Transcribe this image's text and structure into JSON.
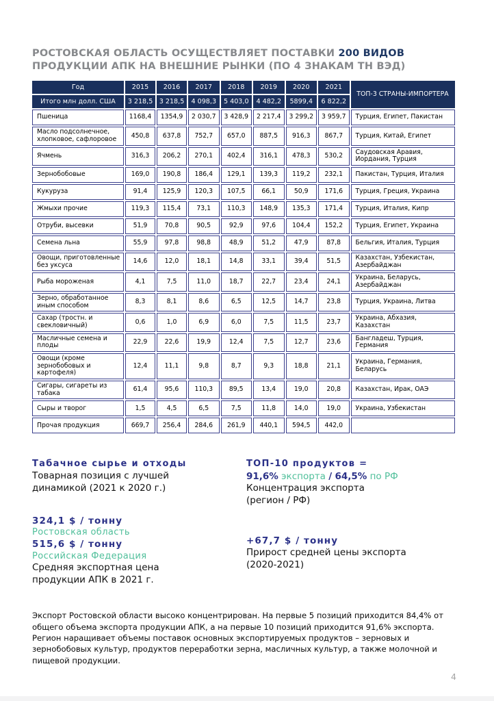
{
  "colors": {
    "header_navy": "#1a305d",
    "table_border": "#3a3f8c",
    "title_gray": "#87898c",
    "accent_navy": "#1f3864",
    "stat_indigo": "#2b3188",
    "stat_green": "#4fbf9a"
  },
  "title": {
    "line1_gray": "РОСТОВСКАЯ ОБЛАСТЬ ОСУЩЕСТВЛЯЕТ ПОСТАВКИ ",
    "line1_accent": "200 ВИДОВ",
    "line2": "ПРОДУКЦИИ АПК НА ВНЕШНИЕ РЫНКИ (ПО 4 ЗНАКАМ ТН ВЭД)"
  },
  "table": {
    "header": {
      "year_label": "Год",
      "years": [
        "2015",
        "2016",
        "2017",
        "2018",
        "2019",
        "2020",
        "2021"
      ],
      "total_label": "Итого млн долл. США",
      "totals": [
        "3 218,5",
        "3 218,5",
        "4 098,3",
        "5 403,0",
        "4 482,2",
        "5899,4",
        "6 822,2"
      ],
      "top3_label": "ТОП-3  СТРАНЫ-ИМПОРТЕРА"
    },
    "rows": [
      {
        "name": "Пшеница",
        "values": [
          "1168,4",
          "1354,9",
          "2 030,7",
          "3 428,9",
          "2 217,4",
          "3 299,2",
          "3 959,7"
        ],
        "top3": "Турция, Египет, Пакистан"
      },
      {
        "name": "Масло подсолнечное, хлопковое, сафлоровое",
        "values": [
          "450,8",
          "637,8",
          "752,7",
          "657,0",
          "887,5",
          "916,3",
          "867,7"
        ],
        "top3": "Турция, Китай, Египет"
      },
      {
        "name": "Ячмень",
        "values": [
          "316,3",
          "206,2",
          "270,1",
          "402,4",
          "316,1",
          "478,3",
          "530,2"
        ],
        "top3": "Саудовская Аравия, Иордания, Турция"
      },
      {
        "name": "Зернобобовые",
        "values": [
          "169,0",
          "190,8",
          "186,4",
          "129,1",
          "139,3",
          "119,2",
          "232,1"
        ],
        "top3": "Пакистан, Турция, Италия"
      },
      {
        "name": "Кукуруза",
        "values": [
          "91,4",
          "125,9",
          "120,3",
          "107,5",
          "66,1",
          "50,9",
          "171,6"
        ],
        "top3": "Турция, Греция, Украина"
      },
      {
        "name": "Жмыхи прочие",
        "values": [
          "119,3",
          "115,4",
          "73,1",
          "110,3",
          "148,9",
          "135,3",
          "171,4"
        ],
        "top3": "Турция, Италия, Кипр"
      },
      {
        "name": "Отруби, высевки",
        "values": [
          "51,9",
          "70,8",
          "90,5",
          "92,9",
          "97,6",
          "104,4",
          "152,2"
        ],
        "top3": "Турция, Египет, Украина"
      },
      {
        "name": "Семена льна",
        "values": [
          "55,9",
          "97,8",
          "98,8",
          "48,9",
          "51,2",
          "47,9",
          "87,8"
        ],
        "top3": "Бельгия, Италия, Турция"
      },
      {
        "name": "Овощи, приготовленные без уксуса",
        "values": [
          "14,6",
          "12,0",
          "18,1",
          "14,8",
          "33,1",
          "39,4",
          "51,5"
        ],
        "top3": "Казахстан, Узбекистан, Азербайджан"
      },
      {
        "name": "Рыба мороженая",
        "values": [
          "4,1",
          "7,5",
          "11,0",
          "18,7",
          "22,7",
          "23,4",
          "24,1"
        ],
        "top3": "Украина, Беларусь, Азербайджан"
      },
      {
        "name": "Зерно, обработанное иным способом",
        "values": [
          "8,3",
          "8,1",
          "8,6",
          "6,5",
          "12,5",
          "14,7",
          "23,8"
        ],
        "top3": "Турция, Украина, Литва"
      },
      {
        "name": "Сахар (тростн. и свекловичный)",
        "values": [
          "0,6",
          "1,0",
          "6,9",
          "6,0",
          "7,5",
          "11,5",
          "23,7"
        ],
        "top3": "Украина, Абхазия, Казахстан"
      },
      {
        "name": "Масличные семена и плоды",
        "values": [
          "22,9",
          "22,6",
          "19,9",
          "12,4",
          "7,5",
          "12,7",
          "23,6"
        ],
        "top3": "Бангладеш, Турция, Германия"
      },
      {
        "name": "Овощи (кроме зернобобовых и картофеля)",
        "values": [
          "12,4",
          "11,1",
          "9,8",
          "8,7",
          "9,3",
          "18,8",
          "21,1"
        ],
        "top3": "Украина, Германия, Беларусь"
      },
      {
        "name": "Сигары, сигареты из табака",
        "values": [
          "61,4",
          "95,6",
          "110,3",
          "89,5",
          "13,4",
          "19,0",
          "20,8"
        ],
        "top3": "Казахстан, Ирак, ОАЭ"
      },
      {
        "name": "Сыры и творог",
        "values": [
          "1,5",
          "4,5",
          "6,5",
          "7,5",
          "11,8",
          "14,0",
          "19,0"
        ],
        "top3": "Украина, Узбекистан"
      },
      {
        "name": "Прочая продукция",
        "values": [
          "669,7",
          "256,4",
          "284,6",
          "261,9",
          "440,1",
          "594,5",
          "442,0"
        ],
        "top3": ""
      }
    ]
  },
  "stats": {
    "tobacco": {
      "head": "Табачное сырье и отходы",
      "body": "Товарная позиция с лучшей\nдинамикой (2021 к 2020 г.)"
    },
    "topten": {
      "head": "ТОП-10 продуктов  =",
      "pct1": "91,6%",
      "word1": "экспорта",
      "slash": "/",
      "pct2": "64,5%",
      "word2": "по РФ",
      "caption": "Концентрация экспорта\n(регион / РФ)"
    },
    "price": {
      "price_region": "324,1 $ / тонну",
      "region_label": "Ростовская область",
      "price_rf": "515,6 $ / тонну",
      "rf_label": "Российская Федерация",
      "caption": "Средняя экспортная цена\nпродукции АПК в 2021 г."
    },
    "growth": {
      "delta": "+67,7 $ / тонну",
      "caption": "Прирост средней цены экспорта\n(2020-2021)"
    }
  },
  "summary": "Экспорт Ростовской области высоко концентрирован. На первые 5 позиций приходится 84,4% от общего объема экспорта продукции АПК, а на первые 10 позиций приходится 91,6% экспорта. Регион наращивает объемы поставок основных экспортируемых продуктов – зерновых и зернобобовых культур, продуктов переработки зерна, масличных культур, а также молочной и пищевой продукции.",
  "page_number": "4"
}
